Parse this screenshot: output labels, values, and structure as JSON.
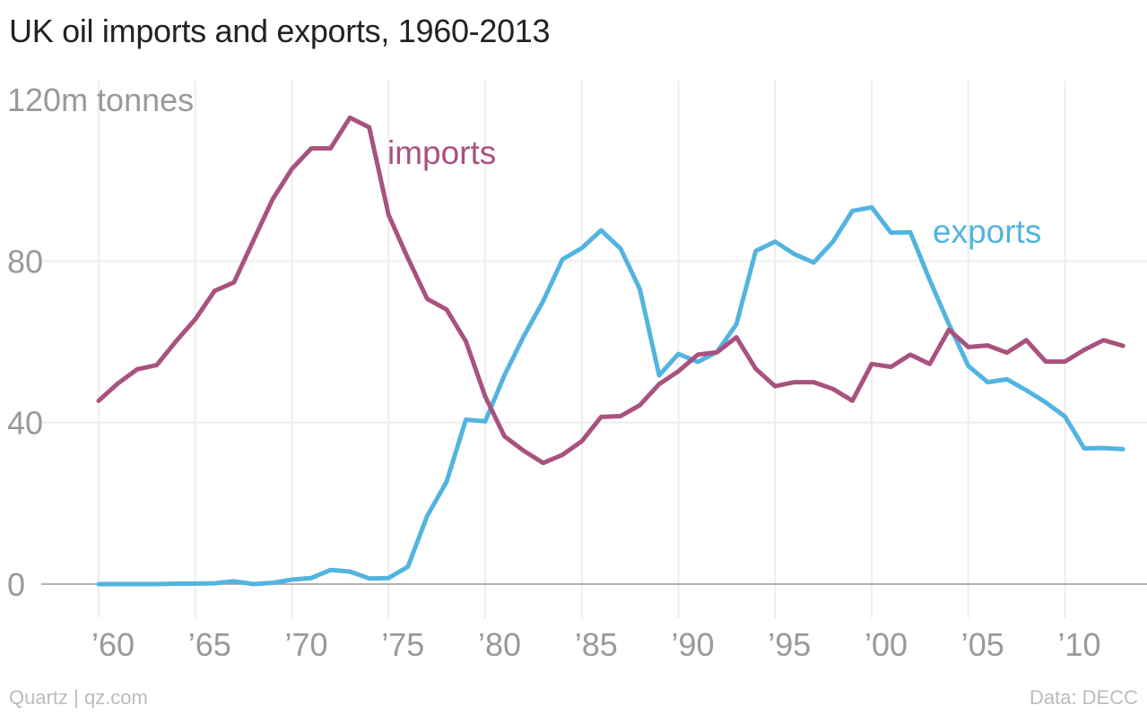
{
  "title": "UK oil imports and exports, 1960-2013",
  "footer": {
    "source_left": "Quartz | qz.com",
    "source_right": "Data: DECC"
  },
  "colors": {
    "imports": "#a8527f",
    "exports": "#52b4e0",
    "grid": "#eeeeee",
    "baseline": "#999999"
  },
  "chart_data": {
    "type": "line",
    "title": "UK oil imports and exports, 1960-2013",
    "ylabel": "120m tonnes",
    "xlabel": "",
    "xlim": [
      1960,
      2013
    ],
    "ylim": [
      0,
      120
    ],
    "grid": true,
    "y_ticks": [
      {
        "value": 120,
        "label": "120m tonnes"
      },
      {
        "value": 80,
        "label": "80"
      },
      {
        "value": 40,
        "label": "40"
      },
      {
        "value": 0,
        "label": "0"
      }
    ],
    "x_ticks": [
      {
        "value": 1960,
        "label": "’60"
      },
      {
        "value": 1965,
        "label": "’65"
      },
      {
        "value": 1970,
        "label": "’70"
      },
      {
        "value": 1975,
        "label": "’75"
      },
      {
        "value": 1980,
        "label": "’80"
      },
      {
        "value": 1985,
        "label": "’85"
      },
      {
        "value": 1990,
        "label": "’90"
      },
      {
        "value": 1995,
        "label": "’95"
      },
      {
        "value": 2000,
        "label": "’00"
      },
      {
        "value": 2005,
        "label": "’05"
      },
      {
        "value": 2010,
        "label": "’10"
      }
    ],
    "x": [
      1960,
      1961,
      1962,
      1963,
      1964,
      1965,
      1966,
      1967,
      1968,
      1969,
      1970,
      1971,
      1972,
      1973,
      1974,
      1975,
      1976,
      1977,
      1978,
      1979,
      1980,
      1981,
      1982,
      1983,
      1984,
      1985,
      1986,
      1987,
      1988,
      1989,
      1990,
      1991,
      1992,
      1993,
      1994,
      1995,
      1996,
      1997,
      1998,
      1999,
      2000,
      2001,
      2002,
      2003,
      2004,
      2005,
      2006,
      2007,
      2008,
      2009,
      2010,
      2011,
      2012,
      2013
    ],
    "series": [
      {
        "name": "imports",
        "label_text": "imports",
        "values": [
          45.4,
          49.7,
          53.2,
          54.2,
          60.1,
          65.6,
          72.6,
          74.7,
          85.0,
          95.3,
          102.8,
          107.9,
          107.9,
          115.5,
          113.1,
          91.4,
          80.7,
          70.6,
          68.0,
          60.1,
          46.5,
          36.6,
          33.0,
          30.0,
          32.0,
          35.4,
          41.4,
          41.6,
          44.3,
          49.5,
          52.7,
          56.8,
          57.4,
          61.1,
          53.3,
          49.0,
          50.0,
          50.0,
          48.3,
          45.4,
          54.5,
          53.8,
          56.8,
          54.5,
          63.0,
          58.7,
          59.1,
          57.3,
          60.4,
          55.1,
          55.1,
          58.0,
          60.4,
          59.0
        ]
      },
      {
        "name": "exports",
        "label_text": "exports",
        "values": [
          0.0,
          0.0,
          0.0,
          0.0,
          0.1,
          0.1,
          0.2,
          0.7,
          0.0,
          0.3,
          1.1,
          1.5,
          3.5,
          3.1,
          1.4,
          1.5,
          4.3,
          16.9,
          25.3,
          40.7,
          40.3,
          51.7,
          61.4,
          70.1,
          80.4,
          83.2,
          87.6,
          83.1,
          73.1,
          51.7,
          57.0,
          55.0,
          57.5,
          64.3,
          82.5,
          84.8,
          81.7,
          79.6,
          84.8,
          92.4,
          93.3,
          87.0,
          87.1,
          75.3,
          64.3,
          54.0,
          50.0,
          50.7,
          48.0,
          45.0,
          41.5,
          33.6,
          33.7,
          33.4
        ]
      }
    ]
  }
}
